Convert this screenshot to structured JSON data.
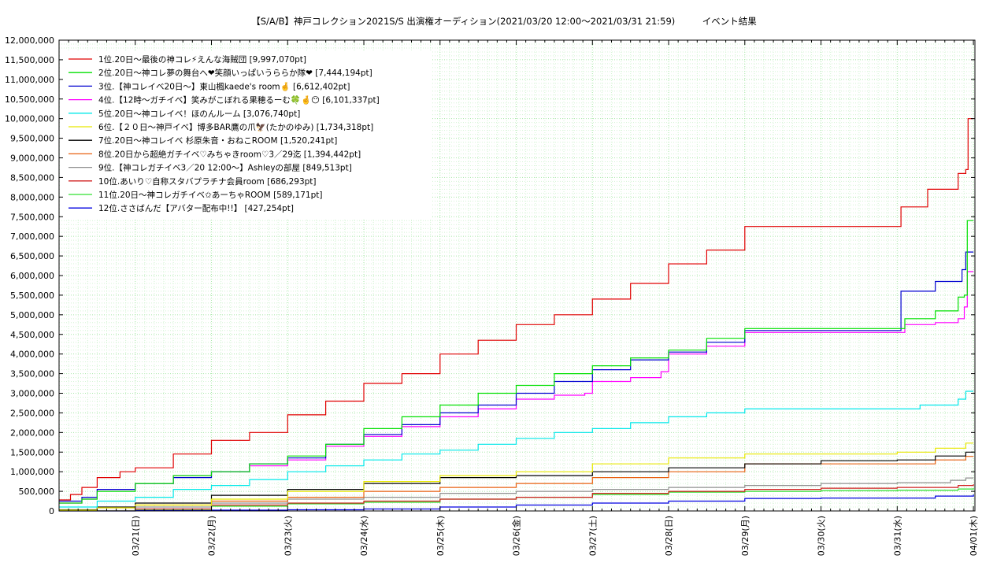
{
  "chart_data": {
    "type": "line",
    "title": "【S/A/B】神戸コレクション2021S/S 出演権オーディション(2021/03/20 12:00～2021/03/31 21:59)　　　イベント結果",
    "xlabel": "",
    "ylabel": "",
    "ylim": [
      0,
      12000000
    ],
    "xlim": [
      "03/20 12:00",
      "04/01 00:00"
    ],
    "grid": true,
    "legend_position": "top-left",
    "y_ticks": [
      "0",
      "500,000",
      "1,000,000",
      "1,500,000",
      "2,000,000",
      "2,500,000",
      "3,000,000",
      "3,500,000",
      "4,000,000",
      "4,500,000",
      "5,000,000",
      "5,500,000",
      "6,000,000",
      "6,500,000",
      "7,000,000",
      "7,500,000",
      "8,000,000",
      "8,500,000",
      "9,000,000",
      "9,500,000",
      "10,000,000",
      "10,500,000",
      "11,000,000",
      "11,500,000",
      "12,000,000"
    ],
    "x_ticks": [
      "03/21(日)",
      "03/22(月)",
      "03/23(火)",
      "03/24(水)",
      "03/25(木)",
      "03/26(金)",
      "03/27(土)",
      "03/28(日)",
      "03/29(月)",
      "03/30(火)",
      "03/31(水)",
      "04/01(木)"
    ],
    "x_tick_days": [
      1,
      2,
      3,
      4,
      5,
      6,
      7,
      8,
      9,
      10,
      11,
      12
    ],
    "series": [
      {
        "name": "1位.20日～最後の神コレ⚡えんな海賊団 [9,997,070pt]",
        "color": "#e00000",
        "points": [
          [
            0,
            280000
          ],
          [
            0.15,
            420000
          ],
          [
            0.3,
            600000
          ],
          [
            0.5,
            850000
          ],
          [
            0.8,
            1000000
          ],
          [
            1,
            1100000
          ],
          [
            1.5,
            1450000
          ],
          [
            2,
            1800000
          ],
          [
            2.5,
            2000000
          ],
          [
            3,
            2450000
          ],
          [
            3.5,
            2800000
          ],
          [
            4,
            3250000
          ],
          [
            4.5,
            3500000
          ],
          [
            5,
            4000000
          ],
          [
            5.5,
            4350000
          ],
          [
            6,
            4750000
          ],
          [
            6.5,
            5000000
          ],
          [
            7,
            5400000
          ],
          [
            7.5,
            5800000
          ],
          [
            8,
            6300000
          ],
          [
            8.5,
            6650000
          ],
          [
            9,
            7250000
          ],
          [
            10,
            7250000
          ],
          [
            11,
            7250000
          ],
          [
            11.05,
            7750000
          ],
          [
            11.4,
            8200000
          ],
          [
            11.8,
            8600000
          ],
          [
            11.9,
            8700000
          ],
          [
            11.93,
            10000000
          ],
          [
            12,
            10000000
          ]
        ]
      },
      {
        "name": "2位.20日～神コレ夢の舞台へ❤笑顔いっぱいうららか隊❤ [7,444,194pt]",
        "color": "#00e000",
        "points": [
          [
            0,
            200000
          ],
          [
            0.3,
            300000
          ],
          [
            0.5,
            500000
          ],
          [
            1,
            700000
          ],
          [
            1.5,
            900000
          ],
          [
            2,
            1000000
          ],
          [
            2.5,
            1200000
          ],
          [
            3,
            1400000
          ],
          [
            3.5,
            1700000
          ],
          [
            4,
            2100000
          ],
          [
            4.5,
            2400000
          ],
          [
            5,
            2700000
          ],
          [
            5.5,
            3000000
          ],
          [
            6,
            3200000
          ],
          [
            6.5,
            3500000
          ],
          [
            7,
            3700000
          ],
          [
            7.5,
            3900000
          ],
          [
            8,
            4100000
          ],
          [
            8.5,
            4400000
          ],
          [
            9,
            4650000
          ],
          [
            10,
            4650000
          ],
          [
            11,
            4650000
          ],
          [
            11.1,
            4900000
          ],
          [
            11.5,
            5100000
          ],
          [
            11.8,
            5450000
          ],
          [
            11.88,
            5500000
          ],
          [
            11.92,
            7400000
          ],
          [
            12,
            7400000
          ]
        ]
      },
      {
        "name": "3位.【神コレイベ20日〜】東山楓kaede's room🤞 [6,612,402pt]",
        "color": "#0000d0",
        "points": [
          [
            0,
            250000
          ],
          [
            0.3,
            350000
          ],
          [
            0.5,
            550000
          ],
          [
            1,
            700000
          ],
          [
            1.5,
            850000
          ],
          [
            2,
            1000000
          ],
          [
            2.5,
            1200000
          ],
          [
            3,
            1350000
          ],
          [
            3.5,
            1700000
          ],
          [
            4,
            1950000
          ],
          [
            4.5,
            2200000
          ],
          [
            5,
            2500000
          ],
          [
            5.5,
            2700000
          ],
          [
            6,
            3000000
          ],
          [
            6.5,
            3300000
          ],
          [
            7,
            3600000
          ],
          [
            7.5,
            3850000
          ],
          [
            8,
            4050000
          ],
          [
            8.5,
            4300000
          ],
          [
            9,
            4600000
          ],
          [
            10,
            4600000
          ],
          [
            11,
            4600000
          ],
          [
            11.05,
            5600000
          ],
          [
            11.5,
            5850000
          ],
          [
            11.85,
            6150000
          ],
          [
            11.9,
            6600000
          ],
          [
            12,
            6600000
          ]
        ]
      },
      {
        "name": "4位.【12時～ガチイベ】笑みがこぼれる果穂るーむ🍀🤞😶 [6,101,337pt]",
        "color": "#ff00ff",
        "points": [
          [
            0,
            200000
          ],
          [
            0.3,
            300000
          ],
          [
            0.5,
            550000
          ],
          [
            1,
            700000
          ],
          [
            1.5,
            900000
          ],
          [
            2,
            1000000
          ],
          [
            2.5,
            1150000
          ],
          [
            3,
            1300000
          ],
          [
            3.5,
            1650000
          ],
          [
            4,
            1900000
          ],
          [
            4.5,
            2150000
          ],
          [
            5,
            2400000
          ],
          [
            5.5,
            2600000
          ],
          [
            6,
            2850000
          ],
          [
            6.5,
            2950000
          ],
          [
            6.9,
            3000000
          ],
          [
            7,
            3300000
          ],
          [
            7.5,
            3400000
          ],
          [
            7.9,
            3550000
          ],
          [
            8,
            4000000
          ],
          [
            8.5,
            4200000
          ],
          [
            9,
            4550000
          ],
          [
            10,
            4550000
          ],
          [
            11,
            4550000
          ],
          [
            11.1,
            4750000
          ],
          [
            11.5,
            4800000
          ],
          [
            11.8,
            4900000
          ],
          [
            11.88,
            5200000
          ],
          [
            11.92,
            6100000
          ],
          [
            12,
            6100000
          ]
        ]
      },
      {
        "name": "5位.20日～神コレイベ！ほのんルーム [3,076,740pt]",
        "color": "#00e8e8",
        "points": [
          [
            0,
            100000
          ],
          [
            0.5,
            250000
          ],
          [
            1,
            350000
          ],
          [
            1.5,
            550000
          ],
          [
            2,
            650000
          ],
          [
            2.5,
            800000
          ],
          [
            3,
            1000000
          ],
          [
            3.5,
            1150000
          ],
          [
            4,
            1300000
          ],
          [
            4.5,
            1450000
          ],
          [
            5,
            1550000
          ],
          [
            5.5,
            1700000
          ],
          [
            6,
            1850000
          ],
          [
            6.5,
            2000000
          ],
          [
            7,
            2100000
          ],
          [
            7.5,
            2250000
          ],
          [
            8,
            2400000
          ],
          [
            8.5,
            2500000
          ],
          [
            9,
            2600000
          ],
          [
            10,
            2600000
          ],
          [
            11,
            2600000
          ],
          [
            11.3,
            2700000
          ],
          [
            11.8,
            2850000
          ],
          [
            11.9,
            3050000
          ],
          [
            12,
            3050000
          ]
        ]
      },
      {
        "name": "6位.【２０日～神戸イベ】博多BAR鷹の爪🦅(たかのゆみ) [1,734,318pt]",
        "color": "#e8e800",
        "points": [
          [
            0,
            20000
          ],
          [
            0.5,
            80000
          ],
          [
            1,
            150000
          ],
          [
            2,
            300000
          ],
          [
            3,
            500000
          ],
          [
            4,
            750000
          ],
          [
            5,
            900000
          ],
          [
            6,
            1000000
          ],
          [
            7,
            1200000
          ],
          [
            8,
            1350000
          ],
          [
            9,
            1450000
          ],
          [
            10,
            1450000
          ],
          [
            11,
            1500000
          ],
          [
            11.5,
            1600000
          ],
          [
            11.9,
            1730000
          ],
          [
            12,
            1730000
          ]
        ]
      },
      {
        "name": "7位.20日～神コレイベ 杉原朱音・おねこROOM [1,520,241pt]",
        "color": "#000000",
        "points": [
          [
            0,
            30000
          ],
          [
            0.5,
            100000
          ],
          [
            1,
            200000
          ],
          [
            2,
            400000
          ],
          [
            3,
            550000
          ],
          [
            4,
            700000
          ],
          [
            5,
            850000
          ],
          [
            6,
            900000
          ],
          [
            7,
            1000000
          ],
          [
            8,
            1100000
          ],
          [
            9,
            1200000
          ],
          [
            10,
            1280000
          ],
          [
            11,
            1300000
          ],
          [
            11.5,
            1400000
          ],
          [
            11.9,
            1500000
          ],
          [
            12,
            1500000
          ]
        ]
      },
      {
        "name": "8位.20日から超絶ガチイベ♡みちゃきroom♡3／29迄 [1,394,442pt]",
        "color": "#e86010",
        "points": [
          [
            0,
            20000
          ],
          [
            0.5,
            80000
          ],
          [
            1,
            150000
          ],
          [
            2,
            250000
          ],
          [
            3,
            350000
          ],
          [
            4,
            500000
          ],
          [
            5,
            600000
          ],
          [
            6,
            700000
          ],
          [
            7,
            850000
          ],
          [
            8,
            1000000
          ],
          [
            9,
            1200000
          ],
          [
            10,
            1200000
          ],
          [
            11,
            1200000
          ],
          [
            11.5,
            1300000
          ],
          [
            11.9,
            1390000
          ],
          [
            12,
            1390000
          ]
        ]
      },
      {
        "name": "9位.【神コレガチイベ3／20 12:00〜】Ashleyの部屋 [849,513pt]",
        "color": "#909090",
        "points": [
          [
            0,
            10000
          ],
          [
            1,
            100000
          ],
          [
            2,
            200000
          ],
          [
            3,
            300000
          ],
          [
            4,
            350000
          ],
          [
            5,
            450000
          ],
          [
            6,
            500000
          ],
          [
            7,
            550000
          ],
          [
            8,
            600000
          ],
          [
            9,
            650000
          ],
          [
            10,
            700000
          ],
          [
            11,
            720000
          ],
          [
            11.7,
            780000
          ],
          [
            11.9,
            840000
          ],
          [
            12,
            840000
          ]
        ]
      },
      {
        "name": "10位.あいり♡自称スタバプラチナ会員room [686,293pt]",
        "color": "#d02020",
        "points": [
          [
            0,
            5000
          ],
          [
            1,
            50000
          ],
          [
            2,
            150000
          ],
          [
            3,
            200000
          ],
          [
            4,
            250000
          ],
          [
            5,
            300000
          ],
          [
            6,
            350000
          ],
          [
            7,
            450000
          ],
          [
            8,
            500000
          ],
          [
            9,
            550000
          ],
          [
            10,
            580000
          ],
          [
            11,
            600000
          ],
          [
            11.8,
            650000
          ],
          [
            12,
            680000
          ]
        ]
      },
      {
        "name": "11位.20日～神コレガチイベ✩あーちゃROOM [589,171pt]",
        "color": "#30e030",
        "points": [
          [
            0,
            5000
          ],
          [
            1,
            40000
          ],
          [
            2,
            120000
          ],
          [
            3,
            180000
          ],
          [
            4,
            220000
          ],
          [
            5,
            300000
          ],
          [
            6,
            350000
          ],
          [
            7,
            420000
          ],
          [
            8,
            480000
          ],
          [
            9,
            500000
          ],
          [
            10,
            520000
          ],
          [
            11,
            530000
          ],
          [
            11.8,
            560000
          ],
          [
            12,
            580000
          ]
        ]
      },
      {
        "name": "12位.ささばんだ【アバター配布中!!】 [427,254pt]",
        "color": "#0000e0",
        "points": [
          [
            0,
            0
          ],
          [
            1,
            10000
          ],
          [
            2,
            20000
          ],
          [
            3,
            30000
          ],
          [
            4,
            50000
          ],
          [
            5,
            100000
          ],
          [
            6,
            150000
          ],
          [
            7,
            200000
          ],
          [
            8,
            250000
          ],
          [
            9,
            320000
          ],
          [
            10,
            330000
          ],
          [
            11,
            330000
          ],
          [
            11.5,
            380000
          ],
          [
            12,
            420000
          ]
        ]
      }
    ]
  }
}
